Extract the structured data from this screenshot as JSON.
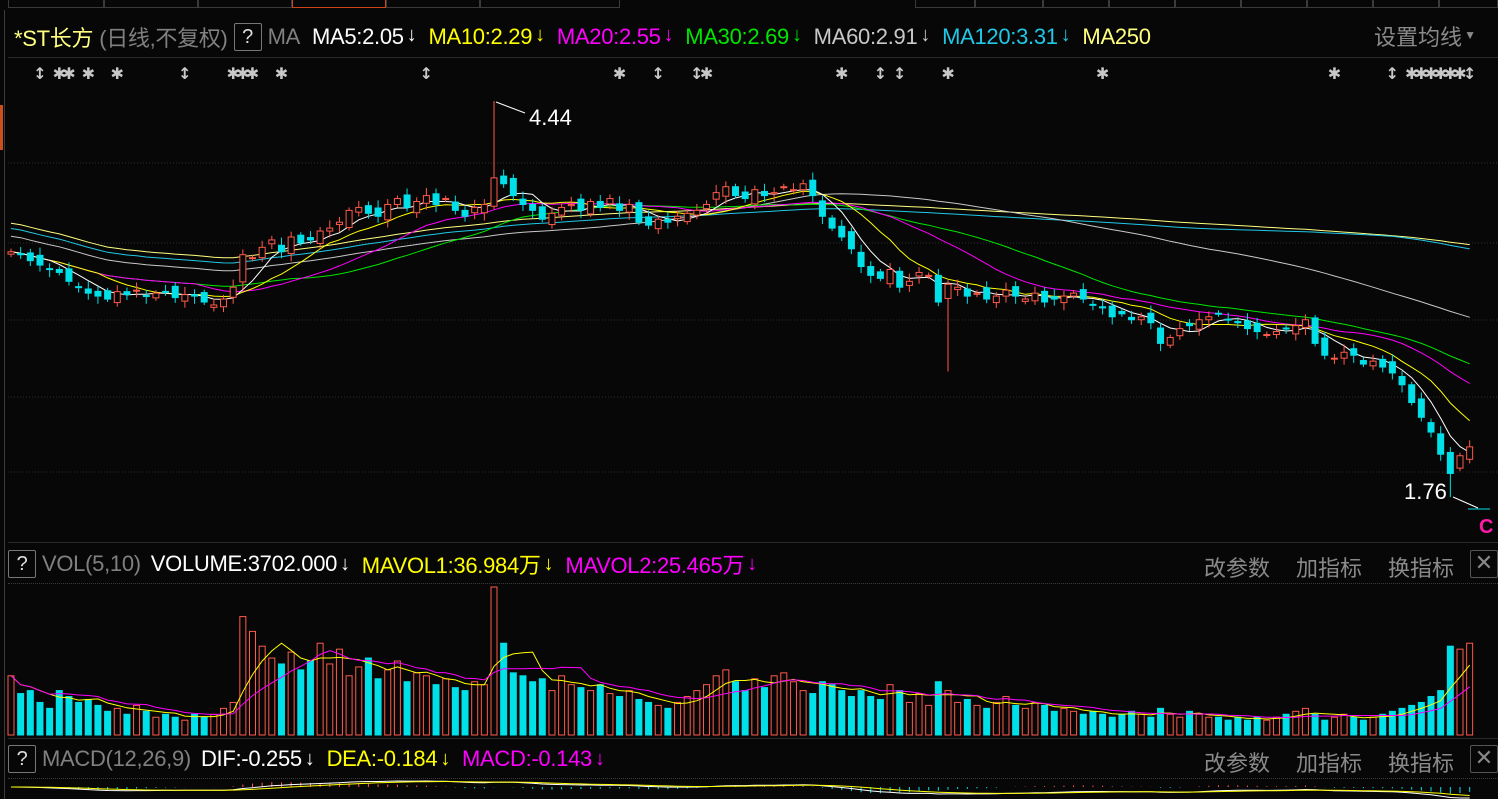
{
  "header": {
    "stock_name": "*ST长方",
    "period": "(日线,不复权)",
    "help": "?",
    "indicator": "MA",
    "ma": [
      {
        "label": "MA5:2.05",
        "color": "#ffffff"
      },
      {
        "label": "MA10:2.29",
        "color": "#ffff00"
      },
      {
        "label": "MA20:2.55",
        "color": "#ff00ff"
      },
      {
        "label": "MA30:2.69",
        "color": "#00e600"
      },
      {
        "label": "MA60:2.91",
        "color": "#c8c8c8"
      },
      {
        "label": "MA120:3.31",
        "color": "#20c8e6"
      },
      {
        "label": "MA250",
        "color": "#ffff80"
      }
    ],
    "down_arrow": "↓",
    "set_ma": "设置均线"
  },
  "price_labels": {
    "high": "4.44",
    "low": "1.76",
    "marker": "C"
  },
  "vol_header": {
    "help": "?",
    "indicator": "VOL(5,10)",
    "volume": "VOLUME:3702.000",
    "mavol1": "MAVOL1:36.984万",
    "mavol2": "MAVOL2:25.465万",
    "down_arrow": "↓"
  },
  "macd_header": {
    "help": "?",
    "indicator": "MACD(12,26,9)",
    "dif": "DIF:-0.255",
    "dea": "DEA:-0.184",
    "macd": "MACD:-0.143",
    "down_arrow": "↓"
  },
  "panel_buttons": {
    "change_params": "改参数",
    "add_indicator": "加指标",
    "switch_indicator": "换指标",
    "close": "✕"
  },
  "colors": {
    "up": "#ff5a4a",
    "down": "#00e0e8",
    "ma5": "#ffffff",
    "ma10": "#ffff00",
    "ma20": "#ff00ff",
    "ma30": "#00e600",
    "ma60": "#c8c8c8",
    "ma120": "#20c8e6",
    "ma250": "#ffff80"
  },
  "chart_data": {
    "type": "candlestick",
    "price_range": [
      1.76,
      4.44
    ],
    "closes": [
      3.42,
      3.4,
      3.36,
      3.33,
      3.3,
      3.28,
      3.22,
      3.18,
      3.14,
      3.12,
      3.1,
      3.15,
      3.13,
      3.16,
      3.12,
      3.14,
      3.15,
      3.11,
      3.13,
      3.12,
      3.08,
      3.06,
      3.1,
      3.18,
      3.4,
      3.38,
      3.45,
      3.5,
      3.42,
      3.52,
      3.48,
      3.5,
      3.56,
      3.58,
      3.62,
      3.7,
      3.72,
      3.68,
      3.66,
      3.74,
      3.78,
      3.72,
      3.76,
      3.8,
      3.74,
      3.78,
      3.7,
      3.66,
      3.72,
      3.74,
      3.92,
      3.88,
      3.8,
      3.74,
      3.7,
      3.64,
      3.68,
      3.72,
      3.74,
      3.7,
      3.76,
      3.72,
      3.78,
      3.7,
      3.74,
      3.62,
      3.6,
      3.64,
      3.62,
      3.66,
      3.68,
      3.7,
      3.74,
      3.82,
      3.86,
      3.8,
      3.78,
      3.84,
      3.8,
      3.82,
      3.86,
      3.84,
      3.88,
      3.8,
      3.66,
      3.58,
      3.52,
      3.44,
      3.32,
      3.26,
      3.24,
      3.3,
      3.18,
      3.22,
      3.28,
      3.26,
      3.08,
      3.2,
      3.18,
      3.12,
      3.14,
      3.1,
      3.12,
      3.16,
      3.12,
      3.1,
      3.14,
      3.08,
      3.1,
      3.12,
      3.14,
      3.1,
      3.06,
      3.04,
      2.98,
      3.0,
      2.96,
      2.98,
      2.94,
      2.8,
      2.84,
      2.9,
      2.92,
      2.96,
      2.98,
      3.0,
      2.96,
      2.94,
      2.9,
      2.88,
      2.86,
      2.88,
      2.9,
      2.92,
      2.96,
      2.8,
      2.72,
      2.7,
      2.74,
      2.72,
      2.66,
      2.68,
      2.64,
      2.6,
      2.52,
      2.4,
      2.3,
      2.2,
      2.05,
      1.92,
      2.04,
      2.1
    ],
    "extremes": {
      "high": {
        "index": 50,
        "value": 4.44
      },
      "low": {
        "index": 149,
        "value": 1.76
      },
      "long_lower_shadow": {
        "index": 97,
        "value": 2.61
      }
    },
    "volumes": [
      40,
      28,
      30,
      22,
      18,
      30,
      26,
      22,
      24,
      20,
      16,
      18,
      14,
      20,
      16,
      12,
      14,
      12,
      10,
      14,
      12,
      14,
      18,
      22,
      80,
      70,
      60,
      52,
      48,
      56,
      44,
      50,
      62,
      48,
      58,
      40,
      46,
      52,
      38,
      44,
      50,
      36,
      42,
      40,
      34,
      38,
      32,
      30,
      36,
      34,
      100,
      62,
      42,
      40,
      36,
      38,
      30,
      40,
      34,
      32,
      30,
      34,
      28,
      26,
      30,
      24,
      22,
      20,
      18,
      22,
      26,
      30,
      34,
      40,
      44,
      36,
      30,
      38,
      32,
      40,
      42,
      36,
      30,
      28,
      36,
      34,
      30,
      26,
      30,
      26,
      24,
      34,
      30,
      22,
      28,
      20,
      36,
      30,
      22,
      24,
      20,
      18,
      22,
      26,
      20,
      18,
      22,
      20,
      16,
      18,
      16,
      14,
      16,
      14,
      12,
      14,
      16,
      14,
      12,
      18,
      14,
      12,
      16,
      14,
      12,
      12,
      10,
      12,
      10,
      12,
      10,
      12,
      14,
      16,
      18,
      14,
      10,
      12,
      14,
      12,
      10,
      12,
      14,
      16,
      18,
      20,
      22,
      26,
      30,
      60,
      58,
      62
    ],
    "vol_range": [
      0,
      100
    ],
    "event_markers": [
      {
        "index": 3,
        "type": "updown"
      },
      {
        "index": 5,
        "type": "star"
      },
      {
        "index": 6,
        "type": "star"
      },
      {
        "index": 8,
        "type": "star"
      },
      {
        "index": 11,
        "type": "star"
      },
      {
        "index": 18,
        "type": "updown"
      },
      {
        "index": 23,
        "type": "star"
      },
      {
        "index": 24,
        "type": "star"
      },
      {
        "index": 25,
        "type": "star"
      },
      {
        "index": 28,
        "type": "star"
      },
      {
        "index": 43,
        "type": "updown"
      },
      {
        "index": 63,
        "type": "star"
      },
      {
        "index": 67,
        "type": "updown"
      },
      {
        "index": 71,
        "type": "updown"
      },
      {
        "index": 72,
        "type": "star"
      },
      {
        "index": 86,
        "type": "star"
      },
      {
        "index": 90,
        "type": "updown"
      },
      {
        "index": 92,
        "type": "updown"
      },
      {
        "index": 97,
        "type": "star"
      },
      {
        "index": 113,
        "type": "star"
      },
      {
        "index": 137,
        "type": "star"
      },
      {
        "index": 143,
        "type": "updown"
      },
      {
        "index": 145,
        "type": "star"
      },
      {
        "index": 146,
        "type": "star"
      },
      {
        "index": 147,
        "type": "star"
      },
      {
        "index": 148,
        "type": "star"
      },
      {
        "index": 149,
        "type": "star"
      },
      {
        "index": 150,
        "type": "star"
      },
      {
        "index": 151,
        "type": "updown"
      }
    ]
  }
}
